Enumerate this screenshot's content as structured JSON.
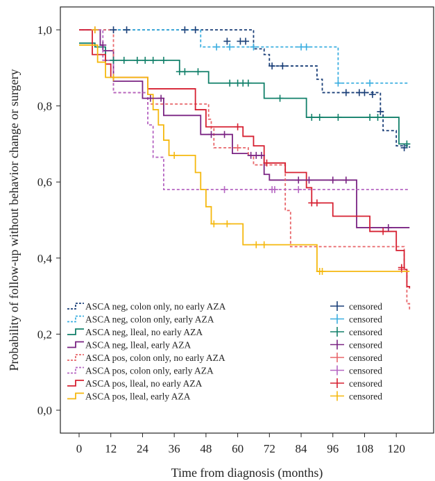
{
  "chart_data": {
    "type": "line",
    "subtype": "kaplan-meier",
    "xlabel": "Time from diagnosis (months)",
    "ylabel": "Probability of follow-up without behavior change or surgery",
    "xlim": [
      -10,
      125
    ],
    "ylim": [
      -0.12,
      1.06
    ],
    "xticks": [
      0,
      12,
      24,
      36,
      48,
      60,
      72,
      84,
      96,
      108,
      120
    ],
    "yticks": [
      0.0,
      0.2,
      0.4,
      0.6,
      0.8,
      1.0
    ],
    "ytick_labels": [
      "0,0",
      "0,2",
      "0,4",
      "0,6",
      "0,8",
      "1,0"
    ],
    "censor_label": "censored",
    "series": [
      {
        "name": "ASCA neg, colon only, no early AZA",
        "color": "#1a3f78",
        "dash": "dashed",
        "steps": [
          [
            0,
            1.0
          ],
          [
            12,
            1.0
          ],
          [
            48,
            1.0
          ],
          [
            66,
            0.95
          ],
          [
            70,
            0.935
          ],
          [
            72,
            0.905
          ],
          [
            90,
            0.87
          ],
          [
            92,
            0.835
          ],
          [
            114,
            0.785
          ],
          [
            115,
            0.735
          ],
          [
            120,
            0.695
          ],
          [
            125,
            0.69
          ]
        ],
        "censored": [
          [
            13,
            1.0
          ],
          [
            18,
            1.0
          ],
          [
            40,
            1.0
          ],
          [
            44,
            1.0
          ],
          [
            56,
            0.97
          ],
          [
            61,
            0.97
          ],
          [
            63,
            0.97
          ],
          [
            73,
            0.905
          ],
          [
            77,
            0.905
          ],
          [
            101,
            0.835
          ],
          [
            106,
            0.835
          ],
          [
            108,
            0.835
          ],
          [
            111,
            0.83
          ],
          [
            114,
            0.785
          ],
          [
            123,
            0.69
          ]
        ]
      },
      {
        "name": "ASCA neg, colon only, early AZA",
        "color": "#3aaee0",
        "dash": "dashed",
        "steps": [
          [
            0,
            1.0
          ],
          [
            44,
            1.0
          ],
          [
            46,
            0.955
          ],
          [
            96,
            0.955
          ],
          [
            98,
            0.86
          ],
          [
            125,
            0.86
          ]
        ],
        "censored": [
          [
            52,
            0.955
          ],
          [
            57,
            0.955
          ],
          [
            66,
            0.955
          ],
          [
            84,
            0.955
          ],
          [
            86,
            0.955
          ],
          [
            98,
            0.86
          ],
          [
            110,
            0.86
          ]
        ]
      },
      {
        "name": "ASCA neg, lleal, no early AZA",
        "color": "#12806a",
        "dash": "solid",
        "steps": [
          [
            0,
            0.965
          ],
          [
            5,
            0.965
          ],
          [
            6,
            0.955
          ],
          [
            10,
            0.92
          ],
          [
            36,
            0.92
          ],
          [
            38,
            0.89
          ],
          [
            48,
            0.89
          ],
          [
            49,
            0.86
          ],
          [
            68,
            0.86
          ],
          [
            70,
            0.82
          ],
          [
            84,
            0.82
          ],
          [
            86,
            0.77
          ],
          [
            120,
            0.77
          ],
          [
            121,
            0.7
          ],
          [
            125,
            0.7
          ]
        ],
        "censored": [
          [
            13,
            0.92
          ],
          [
            17,
            0.92
          ],
          [
            22,
            0.92
          ],
          [
            25,
            0.92
          ],
          [
            28,
            0.92
          ],
          [
            32,
            0.92
          ],
          [
            38,
            0.89
          ],
          [
            40,
            0.89
          ],
          [
            45,
            0.89
          ],
          [
            57,
            0.86
          ],
          [
            60,
            0.86
          ],
          [
            62,
            0.86
          ],
          [
            64,
            0.86
          ],
          [
            76,
            0.82
          ],
          [
            88,
            0.77
          ],
          [
            91,
            0.77
          ],
          [
            98,
            0.77
          ],
          [
            110,
            0.77
          ],
          [
            113,
            0.77
          ],
          [
            124,
            0.7
          ]
        ]
      },
      {
        "name": "ASCA neg, lleal, early AZA",
        "color": "#7a2483",
        "dash": "solid",
        "steps": [
          [
            0,
            1.0
          ],
          [
            7,
            1.0
          ],
          [
            8,
            0.96
          ],
          [
            9,
            0.945
          ],
          [
            12,
            0.945
          ],
          [
            13,
            0.865
          ],
          [
            22,
            0.865
          ],
          [
            24,
            0.82
          ],
          [
            30,
            0.82
          ],
          [
            32,
            0.775
          ],
          [
            44,
            0.775
          ],
          [
            46,
            0.725
          ],
          [
            56,
            0.725
          ],
          [
            58,
            0.675
          ],
          [
            62,
            0.675
          ],
          [
            64,
            0.67
          ],
          [
            68,
            0.67
          ],
          [
            70,
            0.62
          ],
          [
            72,
            0.605
          ],
          [
            104,
            0.605
          ],
          [
            105,
            0.48
          ],
          [
            125,
            0.48
          ]
        ],
        "censored": [
          [
            9,
            0.96
          ],
          [
            27,
            0.82
          ],
          [
            31,
            0.82
          ],
          [
            50,
            0.725
          ],
          [
            55,
            0.725
          ],
          [
            65,
            0.67
          ],
          [
            67,
            0.67
          ],
          [
            69,
            0.67
          ],
          [
            83,
            0.605
          ],
          [
            87,
            0.605
          ],
          [
            96,
            0.605
          ],
          [
            101,
            0.605
          ],
          [
            117,
            0.48
          ]
        ]
      },
      {
        "name": "ASCA pos, colon only, no early AZA",
        "color": "#e8666a",
        "dash": "dashed",
        "steps": [
          [
            0,
            1.0
          ],
          [
            12,
            1.0
          ],
          [
            13,
            0.835
          ],
          [
            24,
            0.835
          ],
          [
            26,
            0.805
          ],
          [
            48,
            0.805
          ],
          [
            49,
            0.765
          ],
          [
            50,
            0.74
          ],
          [
            51,
            0.69
          ],
          [
            62,
            0.69
          ],
          [
            64,
            0.67
          ],
          [
            66,
            0.645
          ],
          [
            76,
            0.645
          ],
          [
            78,
            0.525
          ],
          [
            80,
            0.43
          ],
          [
            120,
            0.43
          ],
          [
            123,
            0.37
          ],
          [
            124,
            0.28
          ],
          [
            125,
            0.26
          ]
        ],
        "censored": [
          [
            60,
            0.69
          ],
          [
            122,
            0.37
          ]
        ]
      },
      {
        "name": "ASCA pos, colon only, early AZA",
        "color": "#b565c2",
        "dash": "dashed",
        "steps": [
          [
            0,
            1.0
          ],
          [
            8,
            1.0
          ],
          [
            9,
            0.92
          ],
          [
            12,
            0.92
          ],
          [
            13,
            0.835
          ],
          [
            24,
            0.835
          ],
          [
            26,
            0.75
          ],
          [
            28,
            0.665
          ],
          [
            30,
            0.665
          ],
          [
            32,
            0.58
          ],
          [
            125,
            0.58
          ]
        ],
        "censored": [
          [
            6,
            1.0
          ],
          [
            55,
            0.58
          ],
          [
            73,
            0.58
          ],
          [
            74,
            0.58
          ],
          [
            83,
            0.58
          ]
        ]
      },
      {
        "name": "ASCA pos, lleal, no early AZA",
        "color": "#d62031",
        "dash": "solid",
        "steps": [
          [
            0,
            1.0
          ],
          [
            5,
            0.935
          ],
          [
            10,
            0.91
          ],
          [
            12,
            0.875
          ],
          [
            24,
            0.875
          ],
          [
            26,
            0.845
          ],
          [
            42,
            0.845
          ],
          [
            44,
            0.79
          ],
          [
            46,
            0.79
          ],
          [
            48,
            0.745
          ],
          [
            60,
            0.745
          ],
          [
            62,
            0.72
          ],
          [
            66,
            0.695
          ],
          [
            70,
            0.65
          ],
          [
            76,
            0.65
          ],
          [
            78,
            0.625
          ],
          [
            84,
            0.625
          ],
          [
            86,
            0.585
          ],
          [
            88,
            0.545
          ],
          [
            94,
            0.545
          ],
          [
            96,
            0.51
          ],
          [
            108,
            0.51
          ],
          [
            110,
            0.47
          ],
          [
            118,
            0.47
          ],
          [
            120,
            0.42
          ],
          [
            122,
            0.42
          ],
          [
            123,
            0.37
          ],
          [
            124,
            0.325
          ],
          [
            125,
            0.32
          ]
        ],
        "censored": [
          [
            60,
            0.745
          ],
          [
            71,
            0.65
          ],
          [
            88,
            0.545
          ],
          [
            90,
            0.545
          ],
          [
            115,
            0.47
          ],
          [
            122,
            0.375
          ]
        ]
      },
      {
        "name": "ASCA pos, lleal, early AZA",
        "color": "#f5b80e",
        "dash": "solid",
        "steps": [
          [
            0,
            0.96
          ],
          [
            6,
            0.96
          ],
          [
            7,
            0.915
          ],
          [
            10,
            0.875
          ],
          [
            24,
            0.875
          ],
          [
            26,
            0.83
          ],
          [
            28,
            0.79
          ],
          [
            30,
            0.75
          ],
          [
            32,
            0.71
          ],
          [
            34,
            0.67
          ],
          [
            42,
            0.67
          ],
          [
            44,
            0.625
          ],
          [
            46,
            0.58
          ],
          [
            48,
            0.535
          ],
          [
            50,
            0.49
          ],
          [
            60,
            0.49
          ],
          [
            62,
            0.435
          ],
          [
            88,
            0.435
          ],
          [
            90,
            0.365
          ],
          [
            125,
            0.365
          ]
        ],
        "censored": [
          [
            6,
            1.0
          ],
          [
            13,
            0.875
          ],
          [
            36,
            0.67
          ],
          [
            51,
            0.49
          ],
          [
            56,
            0.49
          ],
          [
            67,
            0.435
          ],
          [
            70,
            0.435
          ],
          [
            91,
            0.365
          ],
          [
            92,
            0.365
          ]
        ]
      }
    ]
  }
}
